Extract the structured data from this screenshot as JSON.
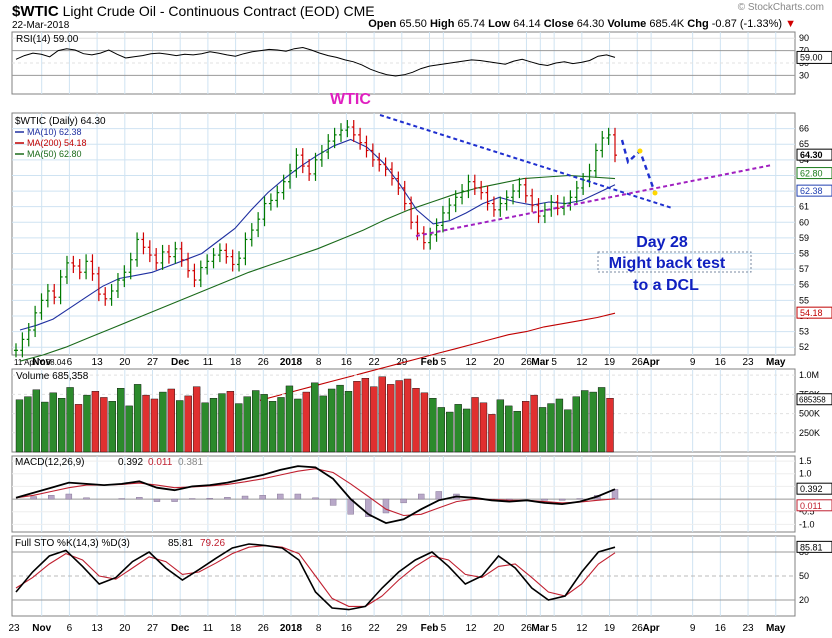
{
  "header": {
    "symbol": "$WTIC",
    "name": "Light Crude Oil - Continuous Contract (EOD)",
    "exchange": "CME",
    "date": "22-Mar-2018",
    "watermark": "© StockCharts.com",
    "open_label": "Open",
    "open": "65.50",
    "high_label": "High",
    "high": "65.74",
    "low_label": "Low",
    "low": "64.14",
    "close_label": "Close",
    "close": "64.30",
    "volume_label": "Volume",
    "volume": "685.4K",
    "chg_label": "Chg",
    "chg": "-0.87 (-1.33%)",
    "chg_arrow": "▼"
  },
  "x_axis": {
    "labels": [
      {
        "text": "11 Apr Y:58.04",
        "w": 0,
        "main": false
      },
      {
        "text": "Nov",
        "w": 1,
        "main": true
      },
      {
        "text": "6",
        "w": 2,
        "main": false
      },
      {
        "text": "13",
        "w": 3,
        "main": false
      },
      {
        "text": "20",
        "w": 4,
        "main": false
      },
      {
        "text": "27",
        "w": 5,
        "main": false
      },
      {
        "text": "Dec",
        "w": 6,
        "main": true
      },
      {
        "text": "11",
        "w": 7,
        "main": false
      },
      {
        "text": "18",
        "w": 8,
        "main": false
      },
      {
        "text": "26",
        "w": 9,
        "main": false
      },
      {
        "text": "2018",
        "w": 10,
        "main": true
      },
      {
        "text": "8",
        "w": 11,
        "main": false
      },
      {
        "text": "16",
        "w": 12,
        "main": false
      },
      {
        "text": "22",
        "w": 13,
        "main": false
      },
      {
        "text": "29",
        "w": 14,
        "main": false
      },
      {
        "text": "Feb",
        "w": 15,
        "main": true
      },
      {
        "text": "5",
        "w": 15.5,
        "main": false
      },
      {
        "text": "12",
        "w": 16.5,
        "main": false
      },
      {
        "text": "20",
        "w": 17.5,
        "main": false
      },
      {
        "text": "26",
        "w": 18.5,
        "main": false
      },
      {
        "text": "Mar",
        "w": 19,
        "main": true
      },
      {
        "text": "5",
        "w": 19.5,
        "main": false
      },
      {
        "text": "12",
        "w": 20.5,
        "main": false
      },
      {
        "text": "19",
        "w": 21.5,
        "main": false
      },
      {
        "text": "26",
        "w": 22.5,
        "main": false
      },
      {
        "text": "Apr",
        "w": 23,
        "main": true
      },
      {
        "text": "9",
        "w": 24.5,
        "main": false
      },
      {
        "text": "16",
        "w": 25.5,
        "main": false
      },
      {
        "text": "23",
        "w": 26.5,
        "main": false
      },
      {
        "text": "May",
        "w": 27.5,
        "main": true
      }
    ],
    "bottom_labels": [
      {
        "text": "23",
        "w": 0,
        "main": false
      },
      {
        "text": "Nov",
        "w": 1,
        "main": true
      },
      {
        "text": "6",
        "w": 2,
        "main": false
      },
      {
        "text": "13",
        "w": 3,
        "main": false
      },
      {
        "text": "20",
        "w": 4,
        "main": false
      },
      {
        "text": "27",
        "w": 5,
        "main": false
      },
      {
        "text": "Dec",
        "w": 6,
        "main": true
      },
      {
        "text": "11",
        "w": 7,
        "main": false
      },
      {
        "text": "18",
        "w": 8,
        "main": false
      },
      {
        "text": "26",
        "w": 9,
        "main": false
      },
      {
        "text": "2018",
        "w": 10,
        "main": true
      },
      {
        "text": "8",
        "w": 11,
        "main": false
      },
      {
        "text": "16",
        "w": 12,
        "main": false
      },
      {
        "text": "22",
        "w": 13,
        "main": false
      },
      {
        "text": "29",
        "w": 14,
        "main": false
      },
      {
        "text": "Feb",
        "w": 15,
        "main": true
      },
      {
        "text": "5",
        "w": 15.5,
        "main": false
      },
      {
        "text": "12",
        "w": 16.5,
        "main": false
      },
      {
        "text": "20",
        "w": 17.5,
        "main": false
      },
      {
        "text": "26",
        "w": 18.5,
        "main": false
      },
      {
        "text": "Mar",
        "w": 19,
        "main": true
      },
      {
        "text": "5",
        "w": 19.5,
        "main": false
      },
      {
        "text": "12",
        "w": 20.5,
        "main": false
      },
      {
        "text": "19",
        "w": 21.5,
        "main": false
      },
      {
        "text": "26",
        "w": 22.5,
        "main": false
      },
      {
        "text": "Apr",
        "w": 23,
        "main": true
      },
      {
        "text": "9",
        "w": 24.5,
        "main": false
      },
      {
        "text": "16",
        "w": 25.5,
        "main": false
      },
      {
        "text": "23",
        "w": 26.5,
        "main": false
      },
      {
        "text": "May",
        "w": 27.5,
        "main": true
      }
    ]
  },
  "chart_data": [
    {
      "id": "rsi",
      "type": "line",
      "legend": "RSI(14) 59.00",
      "ylim": [
        0,
        100
      ],
      "ticks": [
        30,
        50,
        70,
        90
      ],
      "last_label": "59.00",
      "values": [
        56,
        62,
        66,
        64,
        60,
        70,
        73,
        71,
        65,
        63,
        66,
        71,
        64,
        58,
        60,
        62,
        65,
        66,
        64,
        62,
        64,
        63,
        65,
        68,
        66,
        63,
        61,
        65,
        68,
        70,
        72,
        71,
        69,
        73,
        75,
        71,
        66,
        62,
        59,
        55,
        52,
        47,
        40,
        35,
        31,
        29,
        31,
        35,
        41,
        45,
        47,
        49,
        51,
        53,
        55,
        54,
        52,
        50,
        48,
        53,
        56,
        52,
        48,
        46,
        50,
        52,
        49,
        51,
        54,
        61,
        63,
        59
      ]
    },
    {
      "id": "price",
      "type": "ohlc",
      "legend": "$WTIC (Daily) 64.30",
      "title_annotation": "WTIC",
      "ylim": [
        51.5,
        67
      ],
      "ticks": [
        52,
        53,
        54,
        55,
        56,
        57,
        58,
        59,
        60,
        61,
        62,
        63,
        64,
        65,
        66
      ],
      "closes": [
        51.8,
        52.5,
        53.1,
        54.2,
        55.0,
        55.6,
        55.2,
        56.5,
        57.4,
        57.2,
        56.8,
        57.5,
        56.7,
        55.4,
        55.1,
        55.6,
        56.3,
        56.8,
        57.6,
        58.9,
        58.4,
        57.9,
        57.4,
        58.1,
        57.8,
        58.3,
        57.6,
        56.9,
        56.3,
        57.1,
        57.5,
        57.9,
        58.2,
        57.8,
        57.3,
        57.7,
        58.9,
        59.5,
        60.2,
        61.2,
        61.4,
        61.9,
        62.6,
        63.3,
        64.3,
        63.6,
        63.1,
        64.0,
        64.5,
        65.2,
        65.6,
        65.9,
        66.1,
        65.6,
        65.1,
        64.6,
        64.0,
        63.7,
        63.4,
        62.8,
        62.2,
        61.2,
        60.0,
        59.3,
        58.7,
        59.2,
        59.8,
        60.6,
        61.1,
        61.6,
        62.0,
        62.6,
        62.2,
        61.9,
        61.2,
        60.8,
        61.2,
        61.6,
        62.0,
        62.4,
        61.7,
        61.1,
        60.4,
        60.8,
        61.3,
        60.9,
        61.2,
        61.6,
        62.2,
        62.7,
        63.3,
        64.6,
        65.4,
        65.6,
        64.3
      ],
      "ma10_legend": "MA(10) 62.38",
      "ma10": [
        53.1,
        53.4,
        53.8,
        54.5,
        55.2,
        55.9,
        56.4,
        56.6,
        56.8,
        57.2,
        57.6,
        58.0,
        58.8,
        59.6,
        60.8,
        61.9,
        62.8,
        63.6,
        64.3,
        64.9,
        65.3,
        64.8,
        63.8,
        62.4,
        60.8,
        59.9,
        60.1,
        60.6,
        61.2,
        61.6,
        61.3,
        61.1,
        61.3,
        61.2,
        61.4,
        61.9,
        62.4
      ],
      "ma200_legend": "MA(200) 54.18",
      "ma200": [
        48.6,
        48.9,
        49.2,
        49.5,
        49.8,
        50.1,
        50.4,
        50.7,
        51.0,
        51.3,
        51.6,
        51.9,
        52.2,
        52.5,
        52.8,
        53.0,
        53.3,
        53.5,
        53.7,
        53.9,
        54.18
      ],
      "ma50_legend": "MA(50) 62.80",
      "ma50": [
        51.1,
        51.5,
        52.0,
        52.6,
        53.2,
        53.8,
        54.4,
        55.0,
        55.6,
        56.2,
        56.8,
        57.3,
        57.8,
        58.3,
        58.9,
        59.5,
        60.2,
        60.8,
        61.3,
        61.8,
        62.2,
        62.5,
        62.8,
        62.9,
        63.0,
        62.9,
        62.8
      ],
      "last_labels": [
        {
          "text": "64.30",
          "color": "#000000"
        },
        {
          "text": "62.80",
          "color": "#1a7a1a"
        },
        {
          "text": "62.38",
          "color": "#1f3fb0"
        },
        {
          "text": "54.18",
          "color": "#c00000"
        }
      ],
      "annotation_lines": [
        "Day 28",
        "Might back test",
        "to a DCL"
      ]
    },
    {
      "id": "volume",
      "type": "bar",
      "legend": "Volume 685,358",
      "ticks": [
        "1.0M",
        "750K",
        "500K",
        "250K"
      ],
      "last_label": "685358",
      "values": [
        0.68,
        0.72,
        0.81,
        0.65,
        0.77,
        0.7,
        0.84,
        0.62,
        0.74,
        0.79,
        0.71,
        0.66,
        0.83,
        0.6,
        0.88,
        0.74,
        0.69,
        0.78,
        0.82,
        0.67,
        0.73,
        0.85,
        0.64,
        0.7,
        0.76,
        0.79,
        0.63,
        0.72,
        0.8,
        0.75,
        0.66,
        0.71,
        0.86,
        0.69,
        0.78,
        0.9,
        0.73,
        0.82,
        0.87,
        0.79,
        0.92,
        0.96,
        0.85,
        0.98,
        0.88,
        0.93,
        0.95,
        0.83,
        0.77,
        0.7,
        0.58,
        0.52,
        0.62,
        0.56,
        0.71,
        0.64,
        0.49,
        0.68,
        0.6,
        0.53,
        0.66,
        0.74,
        0.58,
        0.63,
        0.69,
        0.55,
        0.72,
        0.8,
        0.78,
        0.84,
        0.7
      ]
    },
    {
      "id": "macd",
      "type": "line",
      "legend_prefix": "MACD(12,26,9)",
      "macd_value": "0.392",
      "signal_value": "0.011",
      "hist_value": "0.381",
      "ylim": [
        -1.3,
        1.7
      ],
      "ticks": [
        "1.5",
        "1.0",
        "0.5",
        "-0.5",
        "-1.0"
      ],
      "last_labels": [
        "0.392",
        "0.011"
      ],
      "macd": [
        0.05,
        0.25,
        0.45,
        0.65,
        0.6,
        0.55,
        0.6,
        0.7,
        0.45,
        0.35,
        0.5,
        0.55,
        0.65,
        0.8,
        0.95,
        1.15,
        1.3,
        1.25,
        0.8,
        0.0,
        -0.6,
        -0.95,
        -0.8,
        -0.4,
        -0.05,
        0.1,
        0.05,
        -0.05,
        -0.1,
        -0.05,
        -0.15,
        -0.2,
        -0.1,
        0.1,
        0.39
      ],
      "signal": [
        0.05,
        0.15,
        0.3,
        0.45,
        0.55,
        0.55,
        0.58,
        0.63,
        0.55,
        0.45,
        0.48,
        0.52,
        0.58,
        0.68,
        0.8,
        0.95,
        1.1,
        1.2,
        1.05,
        0.6,
        0.1,
        -0.4,
        -0.65,
        -0.6,
        -0.35,
        -0.1,
        0.0,
        -0.02,
        -0.05,
        -0.05,
        -0.1,
        -0.15,
        -0.12,
        -0.05,
        0.01
      ],
      "hist": [
        0.0,
        0.1,
        0.15,
        0.2,
        0.05,
        0.0,
        0.02,
        0.07,
        -0.1,
        -0.1,
        0.02,
        0.03,
        0.07,
        0.12,
        0.15,
        0.2,
        0.2,
        0.05,
        -0.25,
        -0.6,
        -0.7,
        -0.55,
        -0.15,
        0.2,
        0.3,
        0.2,
        0.05,
        -0.03,
        -0.05,
        0.0,
        -0.05,
        -0.05,
        0.02,
        0.15,
        0.38
      ]
    },
    {
      "id": "sto",
      "type": "line",
      "legend_prefix": "Full STO %K(14,3) %D(3)",
      "k_value": "85.81",
      "d_value": "79.26",
      "ylim": [
        0,
        100
      ],
      "ticks": [
        20,
        50,
        80
      ],
      "last_label": "85.81",
      "k": [
        30,
        55,
        75,
        82,
        62,
        40,
        48,
        68,
        80,
        60,
        45,
        58,
        72,
        85,
        90,
        88,
        85,
        70,
        30,
        10,
        8,
        12,
        35,
        55,
        70,
        80,
        62,
        40,
        50,
        75,
        60,
        35,
        20,
        25,
        55,
        80,
        86
      ],
      "d": [
        35,
        48,
        65,
        78,
        70,
        50,
        46,
        60,
        74,
        68,
        52,
        55,
        66,
        78,
        86,
        88,
        86,
        78,
        50,
        22,
        12,
        12,
        25,
        45,
        62,
        75,
        70,
        52,
        48,
        62,
        65,
        48,
        30,
        25,
        40,
        65,
        79
      ]
    }
  ]
}
